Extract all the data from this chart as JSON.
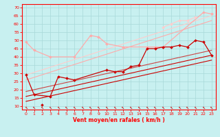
{
  "xlabel": "Vent moyen/en rafales ( km/h )",
  "background_color": "#c8f0f0",
  "grid_color": "#a8d8d8",
  "axis_color": "#ff0000",
  "xlim": [
    -0.5,
    23.5
  ],
  "ylim": [
    8,
    72
  ],
  "yticks": [
    10,
    15,
    20,
    25,
    30,
    35,
    40,
    45,
    50,
    55,
    60,
    65,
    70
  ],
  "xticks": [
    0,
    1,
    2,
    3,
    4,
    5,
    6,
    7,
    8,
    9,
    10,
    11,
    12,
    13,
    14,
    15,
    16,
    17,
    18,
    19,
    20,
    21,
    22,
    23
  ],
  "series": [
    {
      "x": [
        0,
        1,
        3,
        6,
        8,
        9,
        10,
        12,
        15,
        16,
        17,
        22,
        23
      ],
      "y": [
        49,
        44,
        40,
        40,
        53,
        52,
        48,
        46,
        46,
        46,
        46,
        67,
        66
      ],
      "color": "#ffaaaa",
      "marker": "D",
      "markersize": 2.0,
      "linewidth": 0.9,
      "zorder": 3,
      "connect": false
    },
    {
      "x": [
        0,
        1,
        3,
        6,
        8,
        9,
        10,
        12,
        15,
        16,
        17,
        22,
        23
      ],
      "y": [
        49,
        44,
        40,
        40,
        53,
        52,
        48,
        46,
        46,
        46,
        46,
        67,
        66
      ],
      "color": "#ffaaaa",
      "marker": null,
      "markersize": 0,
      "linewidth": 0.9,
      "zorder": 3,
      "connect": true
    },
    {
      "x": [
        17,
        18,
        19,
        20,
        21
      ],
      "y": [
        58,
        60,
        62,
        62,
        64
      ],
      "color": "#ffcccc",
      "marker": "D",
      "markersize": 2.0,
      "linewidth": 0.9,
      "zorder": 3,
      "connect": true
    },
    {
      "x": [
        0,
        1,
        3,
        4,
        5,
        6,
        10,
        11,
        12,
        13,
        14,
        15,
        16,
        17,
        18,
        19,
        20,
        21,
        22,
        23
      ],
      "y": [
        29,
        17,
        16,
        28,
        27,
        26,
        32,
        31,
        31,
        34,
        35,
        45,
        45,
        46,
        46,
        47,
        46,
        50,
        49,
        41
      ],
      "color": "#cc0000",
      "marker": "D",
      "markersize": 2.0,
      "linewidth": 0.9,
      "zorder": 4,
      "connect": true
    },
    {
      "x": [
        2
      ],
      "y": [
        11
      ],
      "color": "#cc0000",
      "marker": "D",
      "markersize": 2.0,
      "linewidth": 0.9,
      "zorder": 4,
      "connect": false
    },
    {
      "x": [
        0,
        23
      ],
      "y": [
        13,
        38
      ],
      "color": "#cc0000",
      "marker": null,
      "markersize": 0,
      "linewidth": 0.8,
      "zorder": 2,
      "connect": true
    },
    {
      "x": [
        0,
        23
      ],
      "y": [
        16,
        41
      ],
      "color": "#cc0000",
      "marker": null,
      "markersize": 0,
      "linewidth": 0.8,
      "zorder": 2,
      "connect": true
    },
    {
      "x": [
        0,
        23
      ],
      "y": [
        19,
        44
      ],
      "color": "#cc4444",
      "marker": null,
      "markersize": 0,
      "linewidth": 0.8,
      "zorder": 2,
      "connect": true
    },
    {
      "x": [
        0,
        23
      ],
      "y": [
        26,
        62
      ],
      "color": "#ffaaaa",
      "marker": null,
      "markersize": 0,
      "linewidth": 0.8,
      "zorder": 2,
      "connect": true
    },
    {
      "x": [
        0,
        23
      ],
      "y": [
        29,
        65
      ],
      "color": "#ffcccc",
      "marker": null,
      "markersize": 0,
      "linewidth": 0.8,
      "zorder": 2,
      "connect": true
    }
  ]
}
